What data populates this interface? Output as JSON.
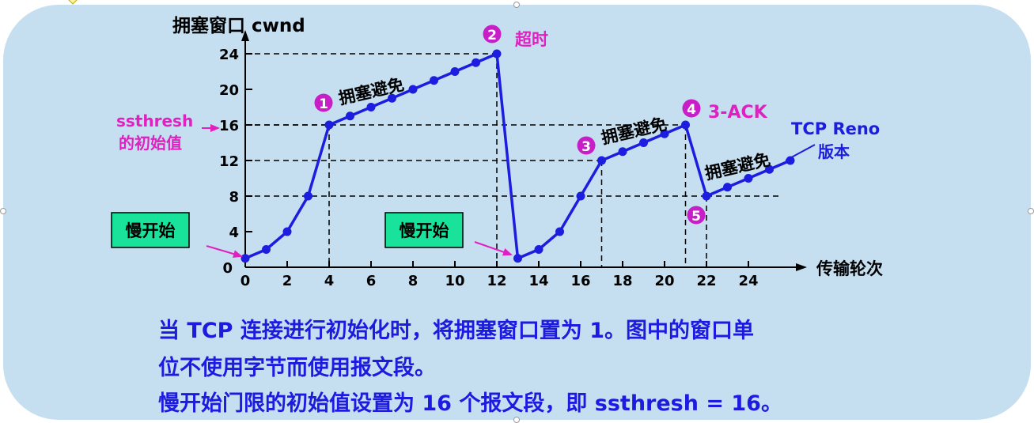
{
  "chart_data": {
    "type": "line",
    "ylabel": "拥塞窗口  cwnd",
    "xlabel": "传输轮次",
    "x_ticks": [
      "0",
      "2",
      "4",
      "6",
      "8",
      "10",
      "12",
      "14",
      "16",
      "18",
      "20",
      "22",
      "24"
    ],
    "y_ticks": [
      "0",
      "4",
      "8",
      "12",
      "16",
      "20",
      "24"
    ],
    "xlim": [
      0,
      26
    ],
    "ylim": [
      0,
      25
    ],
    "series": [
      {
        "name": "TCP Reno 版本",
        "x": [
          0,
          1,
          2,
          3,
          4,
          5,
          6,
          7,
          8,
          9,
          10,
          11,
          12,
          13,
          14,
          15,
          16,
          17,
          18,
          19,
          20,
          21,
          22,
          23,
          24,
          25,
          26
        ],
        "y": [
          1,
          2,
          4,
          8,
          16,
          17,
          18,
          19,
          20,
          21,
          22,
          23,
          24,
          1,
          2,
          4,
          8,
          12,
          13,
          14,
          15,
          16,
          8,
          9,
          10,
          11,
          12
        ]
      }
    ],
    "guides": [
      {
        "x": 4,
        "y": 16
      },
      {
        "x": 12,
        "y": 24
      },
      {
        "x": 17,
        "y": 12
      },
      {
        "x": 21,
        "y": 16
      },
      {
        "x": 22,
        "y": 8
      }
    ],
    "markers": [
      {
        "num": "1",
        "text": "拥塞避免"
      },
      {
        "num": "2",
        "text": "超时"
      },
      {
        "num": "3",
        "text": "拥塞避免"
      },
      {
        "num": "4",
        "text": "3-ACK"
      },
      {
        "num": "5",
        "text": ""
      }
    ],
    "extra_labels": {
      "congestion_avoidance_3": "拥塞避免",
      "ssthresh_line1": "ssthresh",
      "ssthresh_line2": "的初始值",
      "reno_line1": "TCP Reno",
      "reno_line2": "版本",
      "slow_start": "慢开始"
    },
    "colors": {
      "line": "#1d1de0",
      "accent": "#e020c0",
      "marker_fill": "#c81ec8",
      "slow_start_box": "#19e29a",
      "panel": "#c5dff1"
    }
  },
  "notes": [
    "当 TCP 连接进行初始化时，将拥塞窗口置为 1。图中的窗口单",
    "位不使用字节而使用报文段。",
    "慢开始门限的初始值设置为 16 个报文段，即 ssthresh = 16。"
  ]
}
